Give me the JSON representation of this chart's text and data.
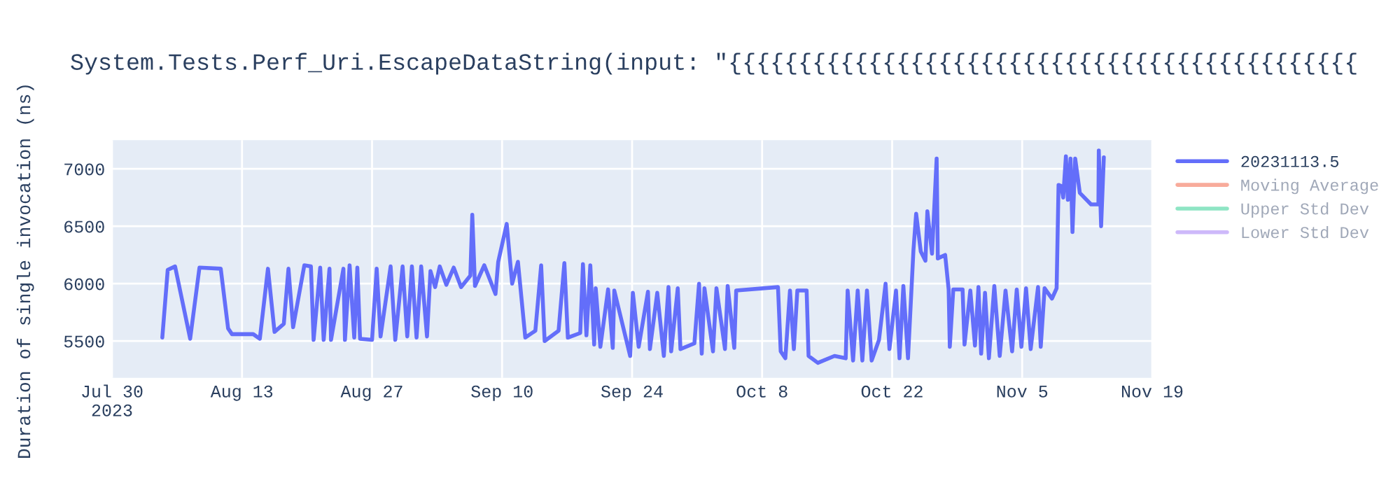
{
  "chart_data": {
    "type": "line",
    "title": "System.Tests.Perf_Uri.EscapeDataString(input: \"{{{{{{{{{{{{{{{{{{{{{{{{{{{{{{{{{{{{{{{{{{{{{",
    "ylabel": "Duration of single invocation (ns)",
    "xlim": [
      "2023-07-30",
      "2023-11-19"
    ],
    "xticks": [
      {
        "value": "2023-07-30",
        "label": "Jul 30\n2023"
      },
      {
        "value": "2023-08-13",
        "label": "Aug 13"
      },
      {
        "value": "2023-08-27",
        "label": "Aug 27"
      },
      {
        "value": "2023-09-10",
        "label": "Sep 10"
      },
      {
        "value": "2023-09-24",
        "label": "Sep 24"
      },
      {
        "value": "2023-10-08",
        "label": "Oct 8"
      },
      {
        "value": "2023-10-22",
        "label": "Oct 22"
      },
      {
        "value": "2023-11-05",
        "label": "Nov 5"
      },
      {
        "value": "2023-11-19",
        "label": "Nov 19"
      }
    ],
    "ylim": [
      5180,
      7250
    ],
    "yticks": [
      5500,
      6000,
      6500,
      7000
    ],
    "grid": true,
    "legend": "top right",
    "marker": "none",
    "line_style": "solid",
    "series": [
      {
        "name": "20231113.5",
        "color": "#636efa",
        "x": [
          "2023-08-04T10:00",
          "2023-08-05T00:00",
          "2023-08-05T19:00",
          "2023-08-07T10:00",
          "2023-08-08T10:00",
          "2023-08-10T17:00",
          "2023-08-11T12:00",
          "2023-08-11T22:00",
          "2023-08-14T05:00",
          "2023-08-14T22:00",
          "2023-08-15T19:00",
          "2023-08-16T12:00",
          "2023-08-17T12:00",
          "2023-08-18T00:00",
          "2023-08-18T12:00",
          "2023-08-19T17:00",
          "2023-08-20T10:00",
          "2023-08-20T17:00",
          "2023-08-21T10:00",
          "2023-08-21T19:00",
          "2023-08-22T10:00",
          "2023-08-22T14:00",
          "2023-08-23T22:00",
          "2023-08-24T02:00",
          "2023-08-24T14:00",
          "2023-08-25T02:00",
          "2023-08-25T10:00",
          "2023-08-25T17:00",
          "2023-08-27T00:00",
          "2023-08-27T12:00",
          "2023-08-27T22:00",
          "2023-08-29T00:00",
          "2023-08-29T12:00",
          "2023-08-30T07:00",
          "2023-08-30T19:00",
          "2023-08-31T07:00",
          "2023-08-31T19:00",
          "2023-09-01T07:00",
          "2023-09-01T22:00",
          "2023-09-02T07:00",
          "2023-09-02T19:00",
          "2023-09-03T07:00",
          "2023-09-04T00:00",
          "2023-09-04T19:00",
          "2023-09-05T14:00",
          "2023-09-06T14:00",
          "2023-09-06T19:00",
          "2023-09-07T02:00",
          "2023-09-08T02:00",
          "2023-09-09T07:00",
          "2023-09-09T14:00",
          "2023-09-10T12:00",
          "2023-09-11T02:00",
          "2023-09-11T17:00",
          "2023-09-12T12:00",
          "2023-09-13T14:00",
          "2023-09-14T05:00",
          "2023-09-14T14:00",
          "2023-09-16T02:00",
          "2023-09-16T17:00",
          "2023-09-17T02:00",
          "2023-09-18T10:00",
          "2023-09-18T17:00",
          "2023-09-19T02:00",
          "2023-09-19T12:00",
          "2023-09-19T22:00",
          "2023-09-20T02:00",
          "2023-09-20T14:00",
          "2023-09-21T10:00",
          "2023-09-21T22:00",
          "2023-09-22T02:00",
          "2023-09-23T19:00",
          "2023-09-24T02:00",
          "2023-09-24T17:00",
          "2023-09-25T17:00",
          "2023-09-25T22:00",
          "2023-09-26T17:00",
          "2023-09-27T10:00",
          "2023-09-27T22:00",
          "2023-09-28T05:00",
          "2023-09-28T22:00",
          "2023-09-29T05:00",
          "2023-09-30T17:00",
          "2023-10-01T05:00",
          "2023-10-01T12:00",
          "2023-10-01T19:00",
          "2023-10-02T17:00",
          "2023-10-03T02:00",
          "2023-10-04T00:00",
          "2023-10-04T07:00",
          "2023-10-05T00:00",
          "2023-10-05T05:00",
          "2023-10-09T17:00",
          "2023-10-10T00:00",
          "2023-10-10T12:00",
          "2023-10-11T00:00",
          "2023-10-11T10:00",
          "2023-10-11T19:00",
          "2023-10-12T19:00",
          "2023-10-13T00:00",
          "2023-10-14T00:00",
          "2023-10-15T19:00",
          "2023-10-17T00:00",
          "2023-10-17T05:00",
          "2023-10-17T19:00",
          "2023-10-18T07:00",
          "2023-10-18T19:00",
          "2023-10-19T07:00",
          "2023-10-19T19:00",
          "2023-10-20T14:00",
          "2023-10-21T07:00",
          "2023-10-21T17:00",
          "2023-10-22T10:00",
          "2023-10-22T19:00",
          "2023-10-23T05:00",
          "2023-10-23T17:00",
          "2023-10-24T07:00",
          "2023-10-24T14:00",
          "2023-10-25T02:00",
          "2023-10-25T14:00",
          "2023-10-25T19:00",
          "2023-10-26T07:00",
          "2023-10-26T19:00",
          "2023-10-26T22:00",
          "2023-10-27T17:00",
          "2023-10-28T02:00",
          "2023-10-28T05:00",
          "2023-10-28T14:00",
          "2023-10-29T14:00",
          "2023-10-29T19:00",
          "2023-10-30T10:00",
          "2023-10-30T22:00",
          "2023-10-31T07:00",
          "2023-10-31T14:00",
          "2023-11-01T00:00",
          "2023-11-01T10:00",
          "2023-11-02T00:00",
          "2023-11-02T14:00",
          "2023-11-03T05:00",
          "2023-11-03T22:00",
          "2023-11-04T10:00",
          "2023-11-04T22:00",
          "2023-11-05T10:00",
          "2023-11-05T22:00",
          "2023-11-06T17:00",
          "2023-11-07T00:00",
          "2023-11-07T10:00",
          "2023-11-08T05:00",
          "2023-11-08T17:00",
          "2023-11-08T22:00",
          "2023-11-09T05:00",
          "2023-11-09T10:00",
          "2023-11-09T17:00",
          "2023-11-09T22:00",
          "2023-11-10T05:00",
          "2023-11-10T10:00",
          "2023-11-10T17:00",
          "2023-11-11T05:00",
          "2023-11-12T10:00",
          "2023-11-13T05:00",
          "2023-11-13T06:00",
          "2023-11-13T12:00",
          "2023-11-13T19:00"
        ],
        "values": [
          5530,
          6120,
          6150,
          5520,
          6140,
          6130,
          5610,
          5560,
          5560,
          5520,
          6130,
          5580,
          5650,
          6130,
          5620,
          6160,
          6150,
          5510,
          6140,
          5510,
          6130,
          5510,
          6130,
          5510,
          6160,
          5530,
          6140,
          5520,
          5510,
          6130,
          5540,
          6150,
          5510,
          6150,
          5540,
          6150,
          5530,
          6150,
          5540,
          6110,
          5970,
          6150,
          5990,
          6140,
          5970,
          6070,
          6600,
          5980,
          6160,
          5910,
          6190,
          6520,
          6000,
          6190,
          5530,
          5590,
          6160,
          5500,
          5590,
          6180,
          5530,
          5570,
          6170,
          5550,
          6160,
          5470,
          5960,
          5450,
          5950,
          5440,
          5940,
          5370,
          5920,
          5450,
          5930,
          5430,
          5920,
          5370,
          5970,
          5410,
          5960,
          5430,
          5480,
          6000,
          5390,
          5960,
          5410,
          5960,
          5430,
          5980,
          5440,
          5940,
          5970,
          5410,
          5350,
          5940,
          5430,
          5940,
          5940,
          5370,
          5310,
          5370,
          5350,
          5940,
          5330,
          5940,
          5330,
          5940,
          5330,
          5510,
          6000,
          5430,
          5940,
          5350,
          5980,
          5350,
          6290,
          6610,
          6280,
          6200,
          6630,
          6260,
          7090,
          6220,
          6250,
          5950,
          5450,
          5950,
          5950,
          5470,
          5940,
          5460,
          5970,
          5390,
          5920,
          5350,
          5980,
          5370,
          5940,
          5410,
          5950,
          5450,
          5960,
          5430,
          5970,
          5450,
          5960,
          5870,
          5960,
          6860,
          6850,
          6750,
          7110,
          6730,
          7090,
          6450,
          7090,
          6790,
          6690,
          6690,
          7160,
          6500,
          7100
        ]
      },
      {
        "name": "Moving Average",
        "color": "#f8ab9b"
      },
      {
        "name": "Upper Std Dev",
        "color": "#8ee5c4"
      },
      {
        "name": "Lower Std Dev",
        "color": "#ceb9fa"
      }
    ]
  }
}
